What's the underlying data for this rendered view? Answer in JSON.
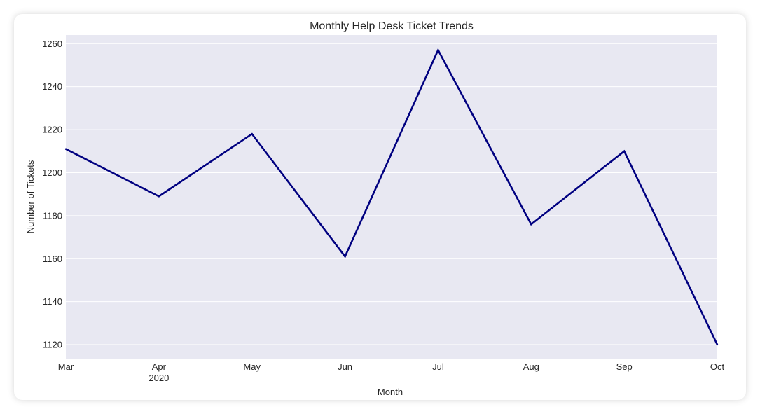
{
  "chart_data": {
    "type": "line",
    "title": "Monthly Help Desk Ticket Trends",
    "xlabel": "Month",
    "ylabel": "Number of Tickets",
    "x": [
      "2020-03",
      "2020-04",
      "2020-05",
      "2020-06",
      "2020-07",
      "2020-08",
      "2020-09",
      "2020-10"
    ],
    "x_tick_labels": [
      "Mar",
      "Apr",
      "May",
      "Jun",
      "Jul",
      "Aug",
      "Sep",
      "Oct"
    ],
    "x_year_label": "2020",
    "series": [
      {
        "values": [
          1211,
          1189,
          1218,
          1161,
          1257,
          1176,
          1210,
          1120
        ],
        "color": "#000080"
      }
    ],
    "yticks": [
      1120,
      1140,
      1160,
      1180,
      1200,
      1220,
      1240,
      1260
    ],
    "ylim": [
      1113.5,
      1264
    ],
    "grid": true,
    "background": "#e8e8f2",
    "grid_color": "#ffffff"
  }
}
